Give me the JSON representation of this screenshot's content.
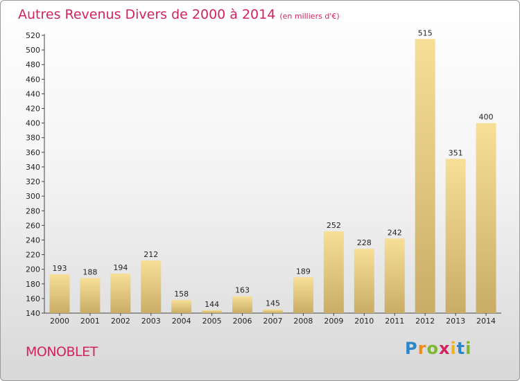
{
  "chart_data": {
    "type": "bar",
    "title": "Autres Revenus Divers de 2000 à 2014",
    "unit_note": "(en milliers d'€)",
    "categories": [
      "2000",
      "2001",
      "2002",
      "2003",
      "2004",
      "2005",
      "2006",
      "2007",
      "2008",
      "2009",
      "2010",
      "2011",
      "2012",
      "2013",
      "2014"
    ],
    "values": [
      193,
      188,
      194,
      212,
      158,
      144,
      163,
      145,
      189,
      252,
      228,
      242,
      515,
      351,
      400
    ],
    "ylim": [
      140,
      520
    ],
    "yticks": [
      140,
      160,
      180,
      200,
      220,
      240,
      260,
      280,
      300,
      320,
      340,
      360,
      380,
      400,
      420,
      440,
      460,
      480,
      500,
      520
    ],
    "grid": false,
    "colors": {
      "bar_light": "#f7df97",
      "bar_dark": "#c9ad66",
      "title": "#d2235d"
    }
  },
  "footer": {
    "commune": "MONOBLET",
    "logo_letters": [
      {
        "char": "P",
        "color": "#2d86c8"
      },
      {
        "char": "r",
        "color": "#f08a1c"
      },
      {
        "char": "o",
        "color": "#7cb82f"
      },
      {
        "char": "x",
        "color": "#d2235d"
      },
      {
        "char": "i",
        "color": "#f0b21c"
      },
      {
        "char": "t",
        "color": "#2d86c8"
      },
      {
        "char": "i",
        "color": "#7cb82f"
      }
    ]
  }
}
